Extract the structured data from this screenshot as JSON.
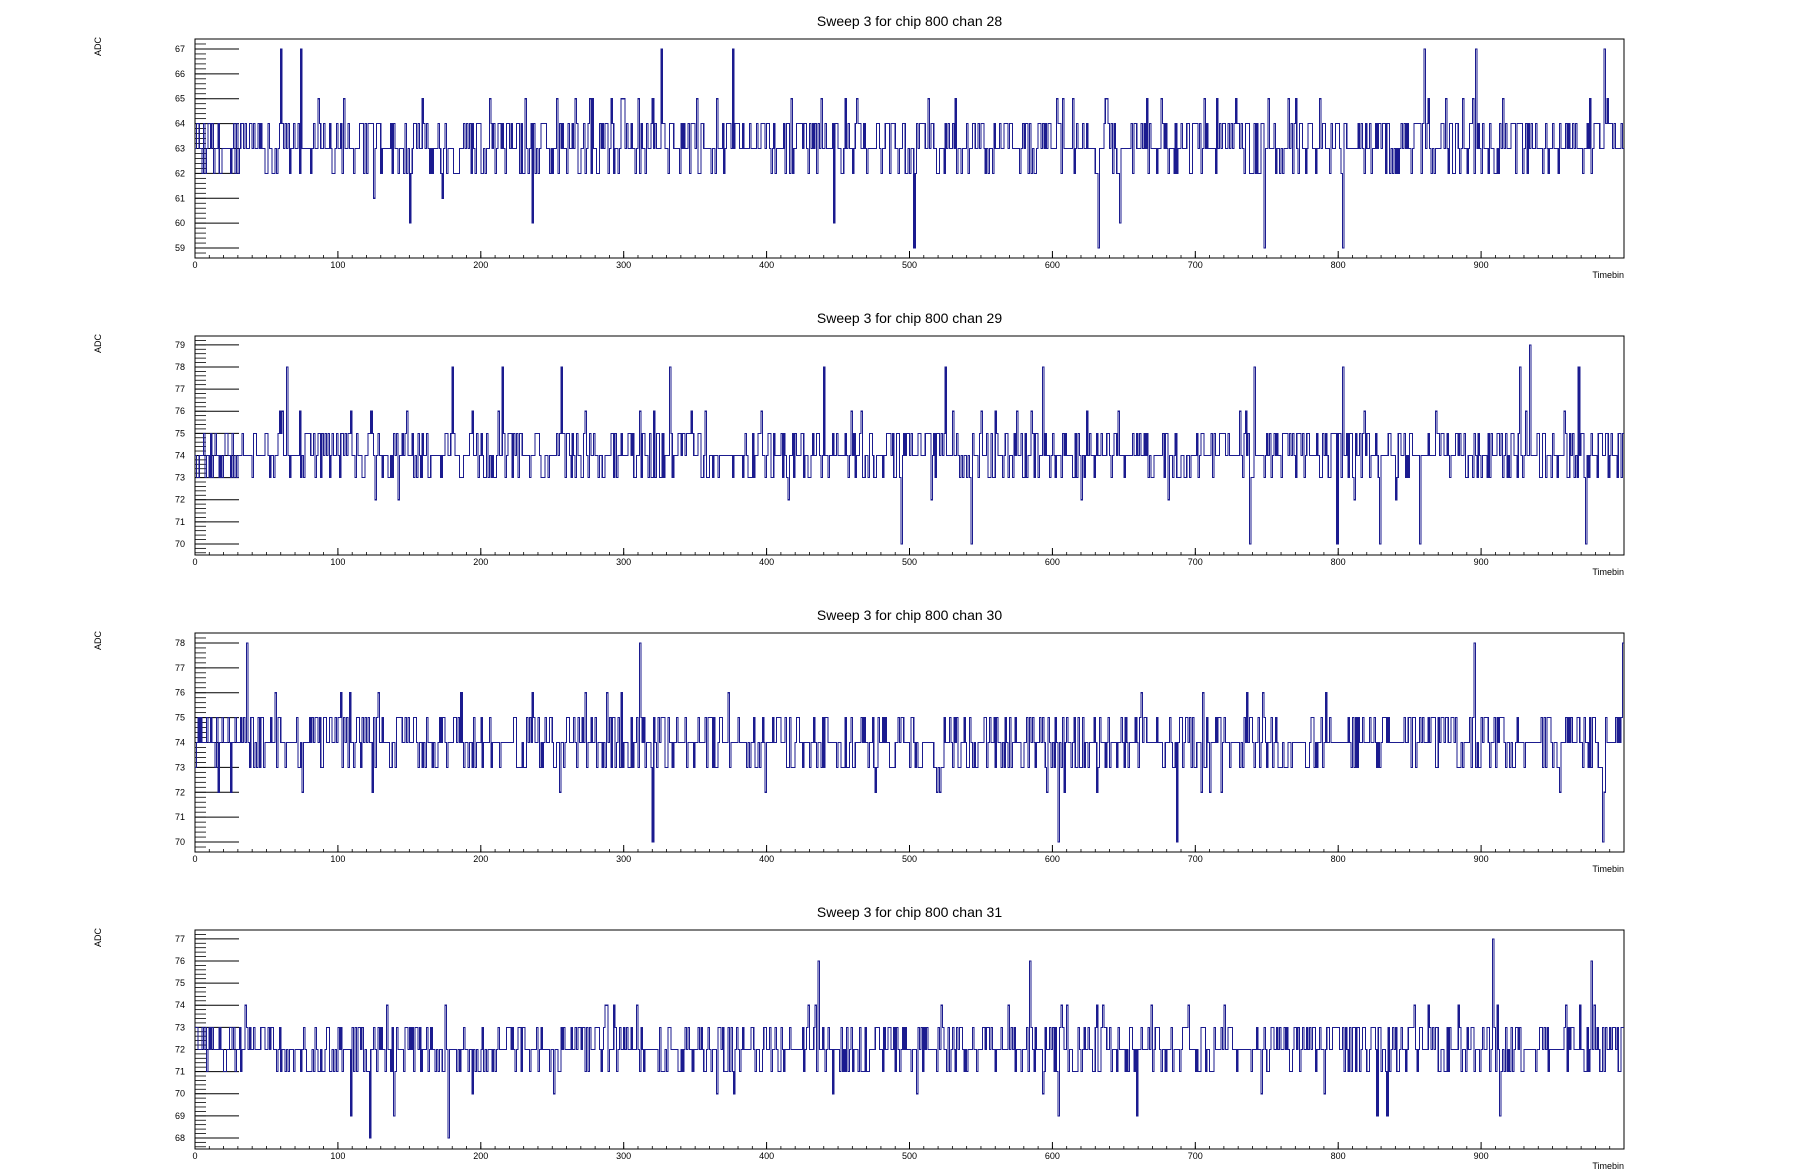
{
  "colors": {
    "series": "#1b1b8f",
    "axis": "#000000",
    "background": "#ffffff"
  },
  "chart_data": [
    {
      "type": "line",
      "style": "step",
      "title": "Sweep 3 for chip 800 chan 28",
      "xlabel": "Timebin",
      "ylabel": "ADC",
      "xlim": [
        0,
        1000
      ],
      "ylim": [
        58.6,
        67.4
      ],
      "xticks": [
        0,
        100,
        200,
        300,
        400,
        500,
        600,
        700,
        800,
        900
      ],
      "xtick_labels": [
        "0",
        "100",
        "200",
        "300",
        "400",
        "500",
        "600",
        "700",
        "800",
        "900"
      ],
      "yticks": [
        59,
        60,
        61,
        62,
        63,
        64,
        65,
        66,
        67
      ],
      "ytick_labels": [
        "59",
        "60",
        "61",
        "62",
        "63",
        "64",
        "65",
        "66",
        "67"
      ],
      "grid": false,
      "legend": false,
      "n_bins": 1000,
      "noise": {
        "mean": 63.2,
        "min": 59,
        "max": 67
      },
      "features": [
        {
          "x": 60,
          "y": 67
        },
        {
          "x": 74,
          "y": 67
        },
        {
          "x": 150,
          "y": 60
        },
        {
          "x": 236,
          "y": 60
        },
        {
          "x": 326,
          "y": 67
        },
        {
          "x": 376,
          "y": 67
        },
        {
          "x": 447,
          "y": 60
        },
        {
          "x": 503,
          "y": 59
        },
        {
          "x": 632,
          "y": 59
        },
        {
          "x": 647,
          "y": 60
        },
        {
          "x": 748,
          "y": 59
        },
        {
          "x": 803,
          "y": 59
        },
        {
          "x": 860,
          "y": 67
        },
        {
          "x": 896,
          "y": 67
        },
        {
          "x": 986,
          "y": 67
        }
      ]
    },
    {
      "type": "line",
      "style": "step",
      "title": "Sweep 3 for chip 800 chan 29",
      "xlabel": "Timebin",
      "ylabel": "ADC",
      "xlim": [
        0,
        1000
      ],
      "ylim": [
        69.5,
        79.4
      ],
      "xticks": [
        0,
        100,
        200,
        300,
        400,
        500,
        600,
        700,
        800,
        900
      ],
      "xtick_labels": [
        "0",
        "100",
        "200",
        "300",
        "400",
        "500",
        "600",
        "700",
        "800",
        "900"
      ],
      "yticks": [
        70,
        71,
        72,
        73,
        74,
        75,
        76,
        77,
        78,
        79
      ],
      "ytick_labels": [
        "70",
        "71",
        "72",
        "73",
        "74",
        "75",
        "76",
        "77",
        "78",
        "79"
      ],
      "grid": false,
      "legend": false,
      "n_bins": 1000,
      "noise": {
        "mean": 74.1,
        "min": 70,
        "max": 79
      },
      "features": [
        {
          "x": 64,
          "y": 78
        },
        {
          "x": 180,
          "y": 78
        },
        {
          "x": 215,
          "y": 78
        },
        {
          "x": 256,
          "y": 78
        },
        {
          "x": 332,
          "y": 78
        },
        {
          "x": 440,
          "y": 78
        },
        {
          "x": 494,
          "y": 70
        },
        {
          "x": 525,
          "y": 78
        },
        {
          "x": 543,
          "y": 70
        },
        {
          "x": 593,
          "y": 78
        },
        {
          "x": 738,
          "y": 70
        },
        {
          "x": 741,
          "y": 78
        },
        {
          "x": 799,
          "y": 70
        },
        {
          "x": 803,
          "y": 78
        },
        {
          "x": 829,
          "y": 70
        },
        {
          "x": 857,
          "y": 70
        },
        {
          "x": 927,
          "y": 78
        },
        {
          "x": 934,
          "y": 79
        },
        {
          "x": 968,
          "y": 78
        },
        {
          "x": 973,
          "y": 70
        }
      ]
    },
    {
      "type": "line",
      "style": "step",
      "title": "Sweep 3 for chip 800 chan 30",
      "xlabel": "Timebin",
      "ylabel": "ADC",
      "xlim": [
        0,
        1000
      ],
      "ylim": [
        69.6,
        78.4
      ],
      "xticks": [
        0,
        100,
        200,
        300,
        400,
        500,
        600,
        700,
        800,
        900
      ],
      "xtick_labels": [
        "0",
        "100",
        "200",
        "300",
        "400",
        "500",
        "600",
        "700",
        "800",
        "900"
      ],
      "yticks": [
        70,
        71,
        72,
        73,
        74,
        75,
        76,
        77,
        78
      ],
      "ytick_labels": [
        "70",
        "71",
        "72",
        "73",
        "74",
        "75",
        "76",
        "77",
        "78"
      ],
      "grid": false,
      "legend": false,
      "n_bins": 1000,
      "noise": {
        "mean": 74.0,
        "min": 70,
        "max": 78
      },
      "features": [
        {
          "x": 36,
          "y": 78
        },
        {
          "x": 311,
          "y": 78
        },
        {
          "x": 320,
          "y": 70
        },
        {
          "x": 604,
          "y": 70
        },
        {
          "x": 687,
          "y": 70
        },
        {
          "x": 1000,
          "y": 78
        },
        {
          "x": 895,
          "y": 78
        },
        {
          "x": 985,
          "y": 70
        }
      ]
    },
    {
      "type": "line",
      "style": "step",
      "title": "Sweep 3 for chip 800 chan 31",
      "xlabel": "Timebin",
      "ylabel": "ADC",
      "xlim": [
        0,
        1000
      ],
      "ylim": [
        67.5,
        77.4
      ],
      "xticks": [
        0,
        100,
        200,
        300,
        400,
        500,
        600,
        700,
        800,
        900
      ],
      "xtick_labels": [
        "0",
        "100",
        "200",
        "300",
        "400",
        "500",
        "600",
        "700",
        "800",
        "900"
      ],
      "yticks": [
        68,
        69,
        70,
        71,
        72,
        73,
        74,
        75,
        76,
        77
      ],
      "ytick_labels": [
        "68",
        "69",
        "70",
        "71",
        "72",
        "73",
        "74",
        "75",
        "76",
        "77"
      ],
      "grid": false,
      "legend": false,
      "n_bins": 1000,
      "noise": {
        "mean": 72.1,
        "min": 68,
        "max": 77
      },
      "features": [
        {
          "x": 122,
          "y": 68
        },
        {
          "x": 177,
          "y": 68
        },
        {
          "x": 109,
          "y": 69
        },
        {
          "x": 139,
          "y": 69
        },
        {
          "x": 436,
          "y": 76
        },
        {
          "x": 584,
          "y": 76
        },
        {
          "x": 604,
          "y": 69
        },
        {
          "x": 659,
          "y": 69
        },
        {
          "x": 827,
          "y": 69
        },
        {
          "x": 834,
          "y": 69
        },
        {
          "x": 908,
          "y": 77
        },
        {
          "x": 913,
          "y": 69
        },
        {
          "x": 977,
          "y": 76
        }
      ]
    }
  ]
}
